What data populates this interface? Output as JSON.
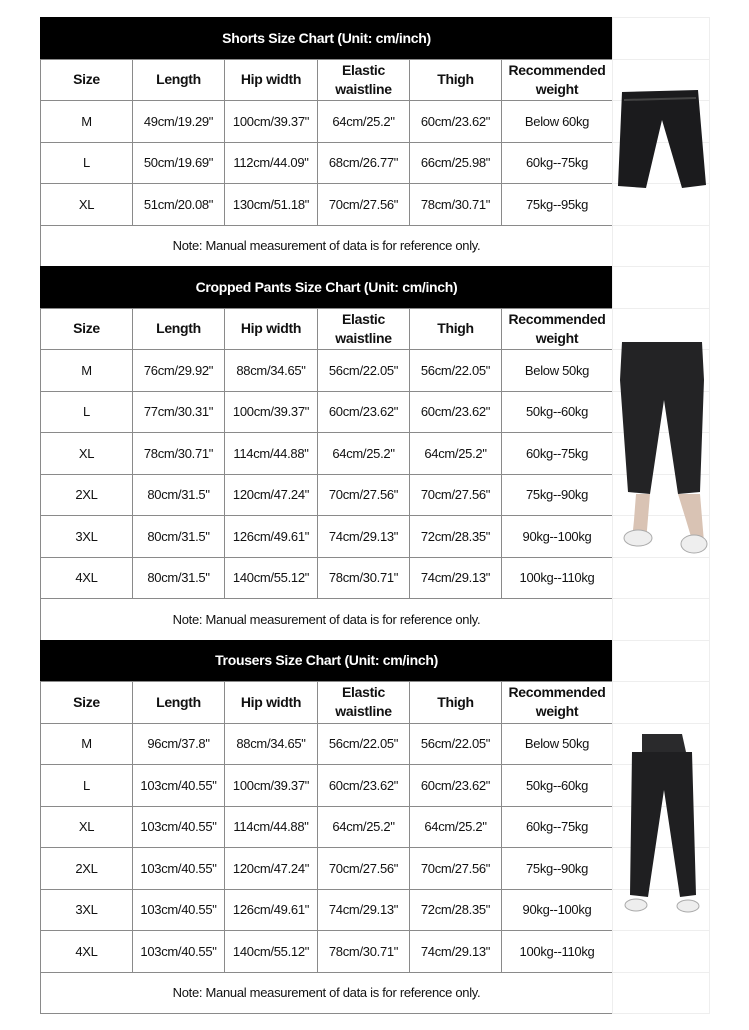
{
  "sections": [
    {
      "title": "Shorts Size Chart (Unit: cm/inch)",
      "headers": [
        "Size",
        "Length",
        "Hip width",
        "Elastic waistline",
        "Thigh",
        "Recommended weight"
      ],
      "rows": [
        [
          "M",
          "49cm/19.29\"",
          "100cm/39.37\"",
          "64cm/25.2\"",
          "60cm/23.62\"",
          "Below 60kg"
        ],
        [
          "L",
          "50cm/19.69\"",
          "112cm/44.09\"",
          "68cm/26.77\"",
          "66cm/25.98\"",
          "60kg--75kg"
        ],
        [
          "XL",
          "51cm/20.08\"",
          "130cm/51.18\"",
          "70cm/27.56\"",
          "78cm/30.71\"",
          "75kg--95kg"
        ]
      ],
      "note": "Note: Manual measurement of data is for reference only."
    },
    {
      "title": "Cropped Pants Size Chart (Unit: cm/inch)",
      "headers": [
        "Size",
        "Length",
        "Hip width",
        "Elastic waistline",
        "Thigh",
        "Recommended weight"
      ],
      "rows": [
        [
          "M",
          "76cm/29.92\"",
          "88cm/34.65\"",
          "56cm/22.05\"",
          "56cm/22.05\"",
          "Below 50kg"
        ],
        [
          "L",
          "77cm/30.31\"",
          "100cm/39.37\"",
          "60cm/23.62\"",
          "60cm/23.62\"",
          "50kg--60kg"
        ],
        [
          "XL",
          "78cm/30.71\"",
          "114cm/44.88\"",
          "64cm/25.2\"",
          "64cm/25.2\"",
          "60kg--75kg"
        ],
        [
          "2XL",
          "80cm/31.5\"",
          "120cm/47.24\"",
          "70cm/27.56\"",
          "70cm/27.56\"",
          "75kg--90kg"
        ],
        [
          "3XL",
          "80cm/31.5\"",
          "126cm/49.61\"",
          "74cm/29.13\"",
          "72cm/28.35\"",
          "90kg--100kg"
        ],
        [
          "4XL",
          "80cm/31.5\"",
          "140cm/55.12\"",
          "78cm/30.71\"",
          "74cm/29.13\"",
          "100kg--110kg"
        ]
      ],
      "note": "Note: Manual measurement of data is for reference only."
    },
    {
      "title": "Trousers Size Chart (Unit: cm/inch)",
      "headers": [
        "Size",
        "Length",
        "Hip width",
        "Elastic waistline",
        "Thigh",
        "Recommended weight"
      ],
      "rows": [
        [
          "M",
          "96cm/37.8\"",
          "88cm/34.65\"",
          "56cm/22.05\"",
          "56cm/22.05\"",
          "Below 50kg"
        ],
        [
          "L",
          "103cm/40.55\"",
          "100cm/39.37\"",
          "60cm/23.62\"",
          "60cm/23.62\"",
          "50kg--60kg"
        ],
        [
          "XL",
          "103cm/40.55\"",
          "114cm/44.88\"",
          "64cm/25.2\"",
          "64cm/25.2\"",
          "60kg--75kg"
        ],
        [
          "2XL",
          "103cm/40.55\"",
          "120cm/47.24\"",
          "70cm/27.56\"",
          "70cm/27.56\"",
          "75kg--90kg"
        ],
        [
          "3XL",
          "103cm/40.55\"",
          "126cm/49.61\"",
          "74cm/29.13\"",
          "72cm/28.35\"",
          "90kg--100kg"
        ],
        [
          "4XL",
          "103cm/40.55\"",
          "140cm/55.12\"",
          "78cm/30.71\"",
          "74cm/29.13\"",
          "100kg--110kg"
        ]
      ],
      "note": "Note: Manual measurement of data is for reference only."
    }
  ]
}
